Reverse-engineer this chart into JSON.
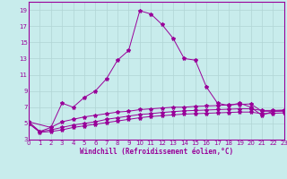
{
  "xlabel": "Windchill (Refroidissement éolien,°C)",
  "background_color": "#c8ecec",
  "grid_color": "#b0d4d4",
  "line_color": "#990099",
  "xlim": [
    0,
    23
  ],
  "ylim": [
    3,
    20
  ],
  "yticks": [
    3,
    5,
    7,
    9,
    11,
    13,
    15,
    17,
    19
  ],
  "xticks": [
    0,
    1,
    2,
    3,
    4,
    5,
    6,
    7,
    8,
    9,
    10,
    11,
    12,
    13,
    14,
    15,
    16,
    17,
    18,
    19,
    20,
    21,
    22,
    23
  ],
  "curve1_x": [
    0,
    1,
    2,
    3,
    4,
    5,
    6,
    7,
    8,
    9,
    10,
    11,
    12,
    13,
    14,
    15,
    16,
    17,
    18,
    19,
    20,
    21,
    22,
    23
  ],
  "curve1_y": [
    5.2,
    4.0,
    4.5,
    7.5,
    7.0,
    8.2,
    9.0,
    10.5,
    12.8,
    14.0,
    18.9,
    18.5,
    17.2,
    15.5,
    13.0,
    12.8,
    9.5,
    7.5,
    7.2,
    7.5,
    7.0,
    6.0,
    6.5,
    6.5
  ],
  "curve2_x": [
    0,
    2,
    3,
    4,
    5,
    6,
    7,
    8,
    9,
    10,
    11,
    12,
    13,
    14,
    15,
    16,
    17,
    18,
    19,
    20,
    21,
    22,
    23
  ],
  "curve2_y": [
    5.2,
    4.5,
    5.2,
    5.5,
    5.8,
    6.0,
    6.2,
    6.4,
    6.5,
    6.7,
    6.8,
    6.9,
    7.0,
    7.0,
    7.1,
    7.15,
    7.2,
    7.3,
    7.35,
    7.4,
    6.5,
    6.5,
    6.6
  ],
  "curve3_x": [
    0,
    1,
    2,
    3,
    4,
    5,
    6,
    7,
    8,
    9,
    10,
    11,
    12,
    13,
    14,
    15,
    16,
    17,
    18,
    19,
    20,
    21,
    22,
    23
  ],
  "curve3_y": [
    5.0,
    4.0,
    4.2,
    4.5,
    4.8,
    5.0,
    5.2,
    5.5,
    5.7,
    5.9,
    6.1,
    6.2,
    6.35,
    6.45,
    6.55,
    6.6,
    6.65,
    6.7,
    6.75,
    6.8,
    6.8,
    6.6,
    6.6,
    6.65
  ],
  "curve4_x": [
    0,
    1,
    2,
    3,
    4,
    5,
    6,
    7,
    8,
    9,
    10,
    11,
    12,
    13,
    14,
    15,
    16,
    17,
    18,
    19,
    20,
    21,
    22,
    23
  ],
  "curve4_y": [
    5.0,
    3.9,
    4.0,
    4.2,
    4.5,
    4.7,
    4.9,
    5.1,
    5.3,
    5.5,
    5.7,
    5.85,
    5.95,
    6.05,
    6.15,
    6.2,
    6.25,
    6.3,
    6.35,
    6.4,
    6.4,
    6.2,
    6.25,
    6.3
  ],
  "tick_fontsize": 5.0,
  "xlabel_fontsize": 5.5
}
